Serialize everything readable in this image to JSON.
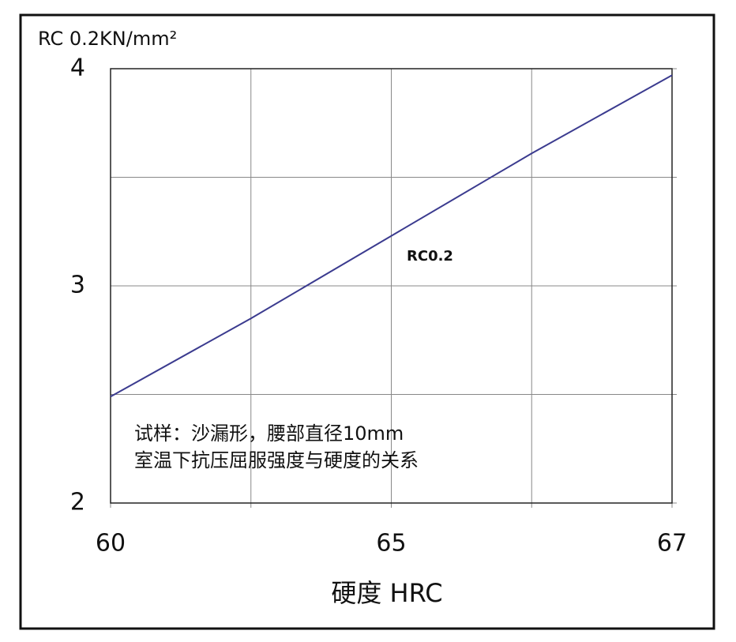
{
  "chart_data": {
    "type": "line",
    "y_label": "RC 0.2KN/mm²",
    "x_label": "硬度 HRC",
    "categories": [
      "60",
      null,
      "65",
      null,
      "67"
    ],
    "series": [
      {
        "name": "RC0.2",
        "color": "#3b3b8f",
        "values": [
          2.49,
          2.85,
          3.23,
          3.61,
          3.97
        ]
      }
    ],
    "ylim": [
      2,
      4
    ],
    "yticks": [
      2,
      3,
      4
    ],
    "minor_yticks": [
      2.5,
      3.5
    ],
    "grid": true,
    "notes": [
      "试样：沙漏形，腰部直径10mm",
      "室温下抗压屈服强度与硬度的关系"
    ]
  }
}
